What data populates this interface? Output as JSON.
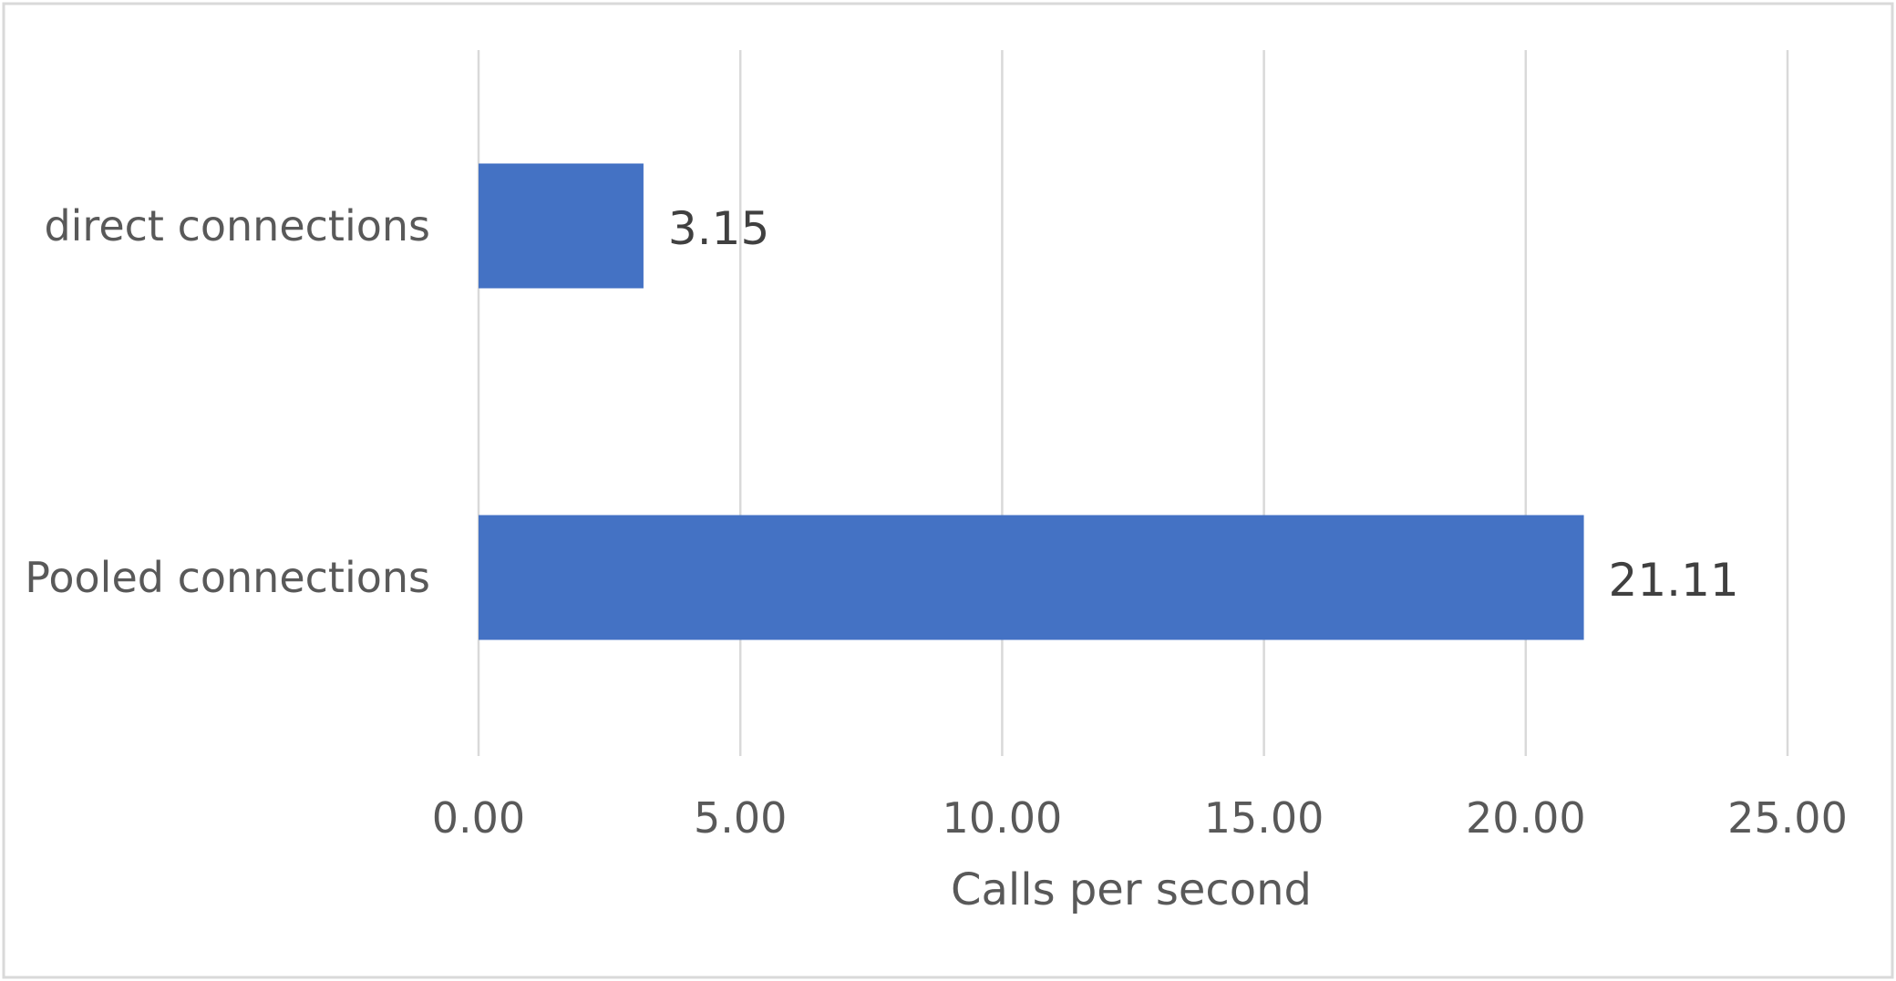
{
  "chart_data": {
    "type": "bar",
    "orientation": "horizontal",
    "categories": [
      "direct connections",
      "Pooled connections"
    ],
    "series": [
      {
        "values": [
          3.15,
          21.11
        ]
      }
    ],
    "data_labels": [
      "3.15",
      "21.11"
    ],
    "x_ticks": [
      "0.00",
      "5.00",
      "10.00",
      "15.00",
      "20.00",
      "25.00"
    ],
    "title": "",
    "xlabel": "Calls per second",
    "ylabel": "",
    "xlim": [
      0,
      25
    ],
    "grid": true,
    "legend": "none",
    "colors": {
      "bar": "#4472c4",
      "grid": "#d9d9d9",
      "text": "#595959",
      "data_label": "#404040"
    }
  }
}
